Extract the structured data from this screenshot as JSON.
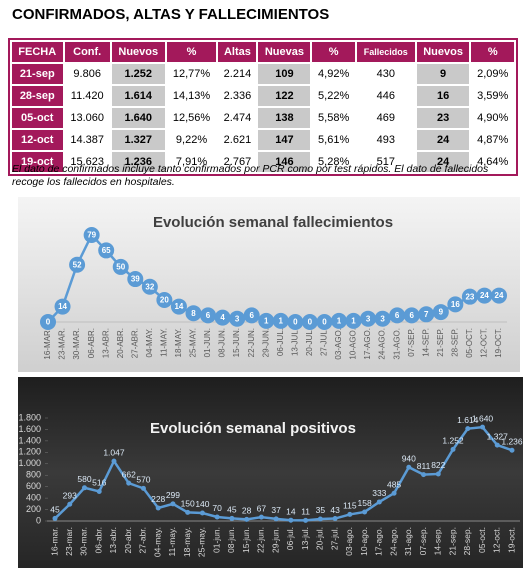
{
  "title": "CONFIRMADOS, ALTAS Y FALLECIMIENTOS",
  "table": {
    "header": [
      "FECHA",
      "Conf.",
      "Nuevos",
      "%",
      "Altas",
      "Nuevas",
      "%",
      "Fallecidos",
      "Nuevos",
      "%"
    ],
    "rows": [
      [
        "21-sep",
        "9.806",
        "1.252",
        "12,77%",
        "2.214",
        "109",
        "4,92%",
        "430",
        "9",
        "2,09%"
      ],
      [
        "28-sep",
        "11.420",
        "1.614",
        "14,13%",
        "2.336",
        "122",
        "5,22%",
        "446",
        "16",
        "3,59%"
      ],
      [
        "05-oct",
        "13.060",
        "1.640",
        "12,56%",
        "2.474",
        "138",
        "5,58%",
        "469",
        "23",
        "4,90%"
      ],
      [
        "12-oct",
        "14.387",
        "1.327",
        "9,22%",
        "2.621",
        "147",
        "5,61%",
        "493",
        "24",
        "4,87%"
      ],
      [
        "19-oct",
        "15.623",
        "1.236",
        "7,91%",
        "2.767",
        "146",
        "5,28%",
        "517",
        "24",
        "4,64%"
      ]
    ]
  },
  "note": "El dato de confirmados incluye tanto confirmados por PCR como por test rápidos. El dato de fallecidos recoge los fallecidos en hospitales.",
  "chart_data": [
    {
      "type": "line",
      "title": "Evolución semanal fallecimientos",
      "color": "#5b9bd5",
      "categories": [
        "16-MAR.",
        "23-MAR.",
        "30-MAR.",
        "06-ABR.",
        "13-ABR.",
        "20-ABR.",
        "27-ABR.",
        "04-MAY.",
        "11-MAY.",
        "18-MAY.",
        "25-MAY.",
        "01-JUN.",
        "08-JUN.",
        "15-JUN.",
        "22-JUN.",
        "29-JUN.",
        "06-JUL.",
        "13-JUL.",
        "20-JUL.",
        "27-JUL.",
        "03-AGO.",
        "10-AGO.",
        "17-AGO.",
        "24-AGO.",
        "31-AGO.",
        "07-SEP.",
        "14-SEP.",
        "21-SEP.",
        "28-SEP.",
        "05-OCT.",
        "12-OCT.",
        "19-OCT."
      ],
      "values": [
        0,
        14,
        52,
        79,
        65,
        50,
        39,
        32,
        20,
        14,
        8,
        6,
        4,
        3,
        6,
        1,
        1,
        0,
        0,
        0,
        1,
        1,
        3,
        3,
        6,
        6,
        7,
        9,
        16,
        23,
        24,
        24
      ]
    },
    {
      "type": "line",
      "title": "Evolución semanal positivos",
      "color": "#5b9bd5",
      "categories": [
        "16-mar.",
        "23-mar.",
        "30-mar.",
        "06-abr.",
        "13-abr.",
        "20-abr.",
        "27-abr.",
        "04-may.",
        "11-may.",
        "18-may.",
        "25-may.",
        "01-jun.",
        "08-jun.",
        "15-jun.",
        "22-jun.",
        "29-jun.",
        "06-jul.",
        "13-jul.",
        "20-jul.",
        "27-jul.",
        "03-ago.",
        "10-ago.",
        "17-ago.",
        "24-ago.",
        "31-ago.",
        "07-sep.",
        "14-sep.",
        "21-sep.",
        "28-sep.",
        "05-oct.",
        "12-oct.",
        "19-oct."
      ],
      "values": [
        45,
        293,
        580,
        516,
        1047,
        662,
        570,
        228,
        299,
        150,
        140,
        70,
        45,
        28,
        67,
        37,
        14,
        11,
        35,
        43,
        115,
        158,
        333,
        485,
        940,
        811,
        822,
        1252,
        1614,
        1640,
        1327,
        1236
      ],
      "value_labels": [
        "45",
        "293",
        "580",
        "516",
        "1.047",
        "662",
        "570",
        "228",
        "299",
        "150",
        "140",
        "70",
        "45",
        "28",
        "67",
        "37",
        "14",
        "11",
        "35",
        "43",
        "115",
        "158",
        "333",
        "485",
        "940",
        "811",
        "822",
        "1.252",
        "1.614",
        "1.640",
        "1.327",
        "1.236"
      ],
      "ylim": [
        0,
        1800
      ],
      "yticks": [
        0,
        200,
        400,
        600,
        800,
        {
          "value": 1000,
          "label": "1.000"
        },
        {
          "value": 1200,
          "label": "1.200"
        },
        {
          "value": 1400,
          "label": "1.400"
        },
        {
          "value": 1600,
          "label": "1.600"
        },
        {
          "value": 1800,
          "label": "1.800"
        }
      ]
    }
  ]
}
